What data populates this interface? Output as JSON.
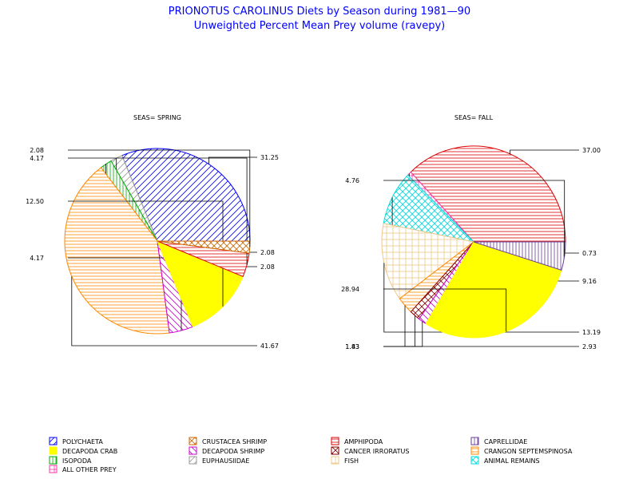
{
  "title": "PRIONOTUS CAROLINUS Diets by Season during 1981—90",
  "subtitle": "Unweighted Percent Mean Prey volume (ravepy)",
  "colors": {
    "POLYCHAETA": "#0000ff",
    "CRUSTACEA SHRIMP": "#cc6600",
    "AMPHIPODA": "#dd0000",
    "CAPRELLIDAE": "#6a3d9a",
    "DECAPODA CRAB": "#ffff00",
    "DECAPODA SHRIMP": "#cc00cc",
    "CANCER IRRORATUS": "#880000",
    "CRANGON SEPTEMSPINOSA": "#ff8800",
    "ISOPODA": "#00aa00",
    "EUPHAUSIIDAE": "#999999",
    "FISH": "#eec88a",
    "ANIMAL REMAINS": "#00dddd",
    "ALL OTHER PREY": "#ff33aa"
  },
  "legend": {
    "items": [
      {
        "name": "POLYCHAETA",
        "pattern": "diag-up"
      },
      {
        "name": "CRUSTACEA SHRIMP",
        "pattern": "cross-x"
      },
      {
        "name": "AMPHIPODA",
        "pattern": "horizontal"
      },
      {
        "name": "CAPRELLIDAE",
        "pattern": "vertical"
      },
      {
        "name": "DECAPODA CRAB",
        "pattern": "solid"
      },
      {
        "name": "DECAPODA SHRIMP",
        "pattern": "diag-down"
      },
      {
        "name": "CANCER IRRORATUS",
        "pattern": "cross-x"
      },
      {
        "name": "CRANGON SEPTEMSPINOSA",
        "pattern": "horizontal"
      },
      {
        "name": "ISOPODA",
        "pattern": "vertical"
      },
      {
        "name": "EUPHAUSIIDAE",
        "pattern": "diag-up"
      },
      {
        "name": "FISH",
        "pattern": "cross"
      },
      {
        "name": "ANIMAL REMAINS",
        "pattern": "cross-x"
      },
      {
        "name": "ALL OTHER PREY",
        "pattern": "cross"
      }
    ]
  },
  "chart_data": [
    {
      "type": "pie",
      "title": "SEAS= SPRING",
      "slices": [
        {
          "name": "POLYCHAETA",
          "value": 31.25,
          "label": "31.25"
        },
        {
          "name": "EUPHAUSIIDAE",
          "value": 2.08,
          "label": "2.08"
        },
        {
          "name": "ISOPODA",
          "value": 2.08,
          "label": "2.08"
        },
        {
          "name": "CRANGON SEPTEMSPINOSA",
          "value": 41.67,
          "label": "41.67"
        },
        {
          "name": "DECAPODA SHRIMP",
          "value": 4.17,
          "label": "4.17"
        },
        {
          "name": "DECAPODA CRAB",
          "value": 12.5,
          "label": "12.50"
        },
        {
          "name": "AMPHIPODA",
          "value": 4.17,
          "label": "4.17"
        },
        {
          "name": "CRUSTACEA SHRIMP",
          "value": 2.08,
          "label": "2.08"
        }
      ]
    },
    {
      "type": "pie",
      "title": "SEAS= FALL",
      "slices": [
        {
          "name": "AMPHIPODA",
          "value": 37.0,
          "label": "37.00"
        },
        {
          "name": "ALL OTHER PREY",
          "value": 0.73,
          "label": "0.73"
        },
        {
          "name": "ANIMAL REMAINS",
          "value": 9.16,
          "label": "9.16"
        },
        {
          "name": "FISH",
          "value": 13.19,
          "label": "13.19"
        },
        {
          "name": "CRANGON SEPTEMSPINOSA",
          "value": 2.93,
          "label": "2.93"
        },
        {
          "name": "CANCER IRRORATUS",
          "value": 1.83,
          "label": "1.83"
        },
        {
          "name": "DECAPODA SHRIMP",
          "value": 1.43,
          "label": "1.43"
        },
        {
          "name": "DECAPODA CRAB",
          "value": 28.94,
          "label": "28.94"
        },
        {
          "name": "CAPRELLIDAE",
          "value": 4.76,
          "label": "4.76"
        }
      ]
    }
  ]
}
